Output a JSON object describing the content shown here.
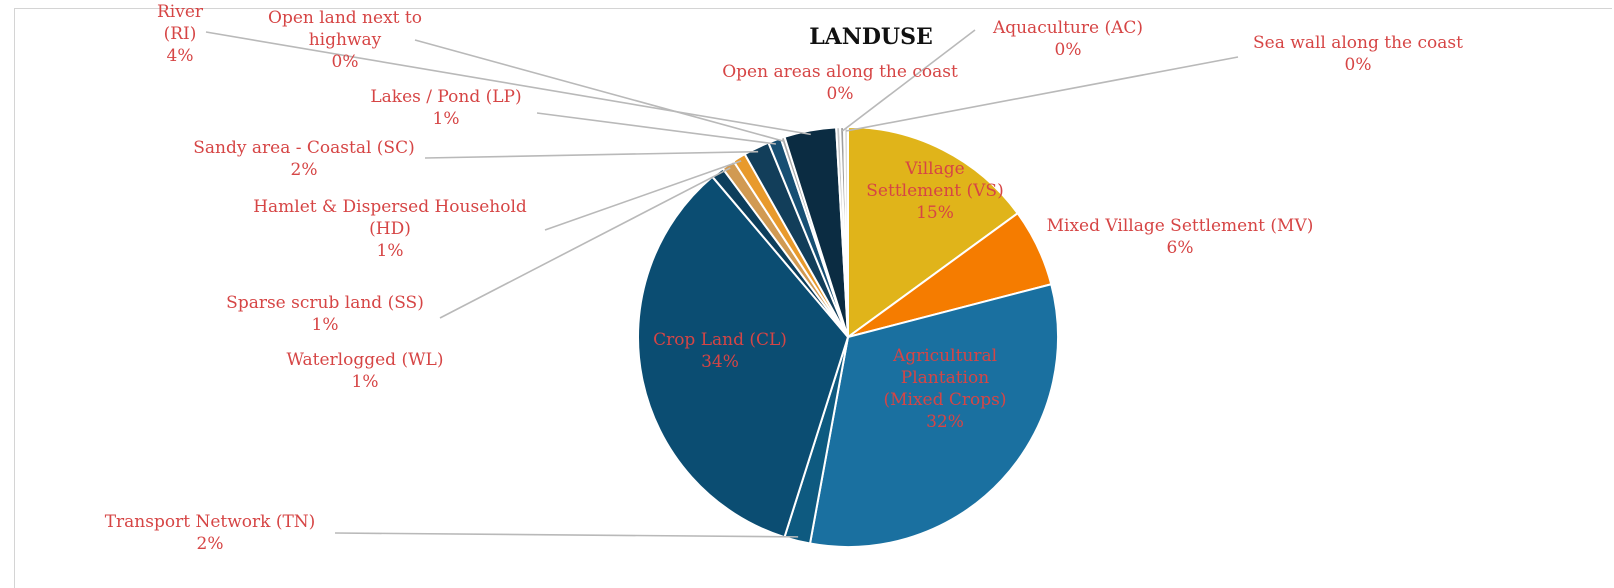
{
  "chart_data": {
    "type": "pie",
    "title": "LANDUSE",
    "slices": [
      {
        "key": "VS",
        "label": [
          "Village",
          "Settlement (VS)"
        ],
        "pct_label": "15%",
        "value": 15,
        "color": "#e0b41a"
      },
      {
        "key": "MV",
        "label": [
          "Mixed Village Settlement (MV)"
        ],
        "pct_label": "6%",
        "value": 6,
        "color": "#f57c00"
      },
      {
        "key": "AP",
        "label": [
          "Agricultural",
          "Plantation",
          "(Mixed Crops)"
        ],
        "pct_label": "32%",
        "value": 32,
        "color": "#1a70a0"
      },
      {
        "key": "TN",
        "label": [
          "Transport Network (TN)"
        ],
        "pct_label": "2%",
        "value": 2,
        "color": "#0e5a80"
      },
      {
        "key": "CL",
        "label": [
          "Crop Land (CL)"
        ],
        "pct_label": "34%",
        "value": 34,
        "color": "#0b4d72"
      },
      {
        "key": "WL",
        "label": [
          "Waterlogged (WL)"
        ],
        "pct_label": "1%",
        "value": 1,
        "color": "#0c3e5c"
      },
      {
        "key": "SS",
        "label": [
          "Sparse scrub land (SS)"
        ],
        "pct_label": "1%",
        "value": 1,
        "color": "#d19a52"
      },
      {
        "key": "HD",
        "label": [
          "Hamlet & Dispersed Household",
          "(HD)"
        ],
        "pct_label": "1%",
        "value": 1,
        "color": "#e89a2c"
      },
      {
        "key": "SC",
        "label": [
          "Sandy area - Coastal (SC)"
        ],
        "pct_label": "2%",
        "value": 2,
        "color": "#123e5a"
      },
      {
        "key": "LP",
        "label": [
          "Lakes / Pond (LP)"
        ],
        "pct_label": "1%",
        "value": 1,
        "color": "#174f73"
      },
      {
        "key": "OH",
        "label": [
          "Open land next to",
          "highway"
        ],
        "pct_label": "0%",
        "value": 0.3,
        "color": "#a9a9a9"
      },
      {
        "key": "RI",
        "label": [
          "River",
          "(RI)"
        ],
        "pct_label": "4%",
        "value": 4,
        "color": "#0b2c42"
      },
      {
        "key": "OC",
        "label": [
          "Open areas along the coast"
        ],
        "pct_label": "0%",
        "value": 0.3,
        "color": "#c8c8c8"
      },
      {
        "key": "AC",
        "label": [
          "Aquaculture (AC)"
        ],
        "pct_label": "0%",
        "value": 0.3,
        "color": "#9e9e9e"
      },
      {
        "key": "SW",
        "label": [
          "Sea wall along the coast"
        ],
        "pct_label": "0%",
        "value": 0.3,
        "color": "#dcdcdc"
      }
    ]
  }
}
